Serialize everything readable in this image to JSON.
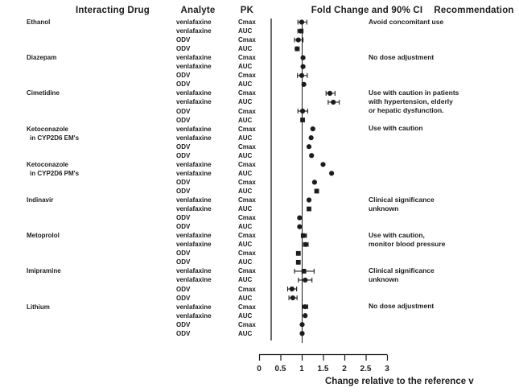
{
  "chart_data": {
    "type": "forest",
    "title": "Fold Change and 90% CI",
    "columns": [
      "Interacting Drug",
      "Analyte",
      "PK",
      "Fold Change and 90% CI",
      "Recommendation"
    ],
    "axis": {
      "xlabel": "Change relative to the reference v",
      "tick_labels": [
        "0",
        "0.5",
        "1",
        "1.5",
        "2",
        "2.5",
        "3"
      ],
      "tick_values": [
        0,
        0.5,
        1,
        1.5,
        2,
        2.5,
        3
      ],
      "xlim": [
        0,
        3
      ],
      "reference_line": 1
    },
    "groups": [
      {
        "drug": "Ethanol",
        "drug_line2": null,
        "recommendation": [
          "Avoid concomitant use"
        ],
        "rows": [
          {
            "analyte": "venlafaxine",
            "pk": "Cmax",
            "value": 1.0,
            "lo": 0.91,
            "hi": 1.12,
            "marker": "circle"
          },
          {
            "analyte": "venlafaxine",
            "pk": "AUC",
            "value": 0.97,
            "lo": 0.91,
            "hi": 1.03,
            "marker": "circle"
          },
          {
            "analyte": "ODV",
            "pk": "Cmax",
            "value": 0.92,
            "lo": 0.83,
            "hi": 1.03,
            "marker": "circle"
          },
          {
            "analyte": "ODV",
            "pk": "AUC",
            "value": 0.89,
            "lo": 0.85,
            "hi": 0.94,
            "marker": "circle"
          }
        ]
      },
      {
        "drug": "Diazepam",
        "drug_line2": null,
        "recommendation": [
          "No dose adjustment"
        ],
        "rows": [
          {
            "analyte": "venlafaxine",
            "pk": "Cmax",
            "value": 1.03,
            "lo": null,
            "hi": null,
            "marker": "circle"
          },
          {
            "analyte": "venlafaxine",
            "pk": "AUC",
            "value": 1.03,
            "lo": null,
            "hi": null,
            "marker": "circle"
          },
          {
            "analyte": "ODV",
            "pk": "Cmax",
            "value": 1.0,
            "lo": 0.9,
            "hi": 1.13,
            "marker": "circle"
          },
          {
            "analyte": "ODV",
            "pk": "AUC",
            "value": 1.05,
            "lo": null,
            "hi": null,
            "marker": "circle"
          }
        ]
      },
      {
        "drug": "Cimetidine",
        "drug_line2": null,
        "recommendation": [
          "Use with caution in patients",
          "with hypertension, elderly",
          "or hepatic dysfunction."
        ],
        "rows": [
          {
            "analyte": "venlafaxine",
            "pk": "Cmax",
            "value": 1.66,
            "lo": 1.57,
            "hi": 1.78,
            "marker": "circle"
          },
          {
            "analyte": "venlafaxine",
            "pk": "AUC",
            "value": 1.74,
            "lo": 1.62,
            "hi": 1.88,
            "marker": "circle"
          },
          {
            "analyte": "ODV",
            "pk": "Cmax",
            "value": 1.02,
            "lo": 0.91,
            "hi": 1.14,
            "marker": "circle"
          },
          {
            "analyte": "ODV",
            "pk": "AUC",
            "value": 1.02,
            "lo": null,
            "hi": null,
            "marker": "square"
          }
        ]
      },
      {
        "drug": "Ketoconazole",
        "drug_line2": "in CYP2D6 EM's",
        "recommendation": [
          "Use with caution"
        ],
        "rows": [
          {
            "analyte": "venlafaxine",
            "pk": "Cmax",
            "value": 1.26,
            "lo": null,
            "hi": null,
            "marker": "circle"
          },
          {
            "analyte": "venlafaxine",
            "pk": "AUC",
            "value": 1.22,
            "lo": null,
            "hi": null,
            "marker": "circle"
          },
          {
            "analyte": "ODV",
            "pk": "Cmax",
            "value": 1.17,
            "lo": null,
            "hi": null,
            "marker": "circle"
          },
          {
            "analyte": "ODV",
            "pk": "AUC",
            "value": 1.23,
            "lo": null,
            "hi": null,
            "marker": "circle"
          }
        ]
      },
      {
        "drug": "Ketoconazole",
        "drug_line2": "in CYP2D6 PM's",
        "recommendation": [],
        "rows": [
          {
            "analyte": "venlafaxine",
            "pk": "Cmax",
            "value": 1.5,
            "lo": null,
            "hi": null,
            "marker": "circle"
          },
          {
            "analyte": "venlafaxine",
            "pk": "AUC",
            "value": 1.7,
            "lo": null,
            "hi": null,
            "marker": "circle"
          },
          {
            "analyte": "ODV",
            "pk": "Cmax",
            "value": 1.3,
            "lo": null,
            "hi": null,
            "marker": "circle"
          },
          {
            "analyte": "ODV",
            "pk": "AUC",
            "value": 1.35,
            "lo": null,
            "hi": null,
            "marker": "square"
          }
        ]
      },
      {
        "drug": "Indinavir",
        "drug_line2": null,
        "recommendation": [
          "Clinical significance",
          "unknown"
        ],
        "rows": [
          {
            "analyte": "venlafaxine",
            "pk": "Cmax",
            "value": 1.17,
            "lo": null,
            "hi": null,
            "marker": "circle"
          },
          {
            "analyte": "venlafaxine",
            "pk": "AUC",
            "value": 1.17,
            "lo": null,
            "hi": null,
            "marker": "square"
          },
          {
            "analyte": "ODV",
            "pk": "Cmax",
            "value": 0.95,
            "lo": null,
            "hi": null,
            "marker": "circle"
          },
          {
            "analyte": "ODV",
            "pk": "AUC",
            "value": 0.95,
            "lo": null,
            "hi": null,
            "marker": "circle"
          }
        ]
      },
      {
        "drug": "Metoprolol",
        "drug_line2": null,
        "recommendation": [
          "Use with caution,",
          "monitor blood pressure"
        ],
        "rows": [
          {
            "analyte": "venlafaxine",
            "pk": "Cmax",
            "value": 1.05,
            "lo": 0.99,
            "hi": 1.11,
            "marker": "circle"
          },
          {
            "analyte": "venlafaxine",
            "pk": "AUC",
            "value": 1.09,
            "lo": 1.04,
            "hi": 1.15,
            "marker": "circle"
          },
          {
            "analyte": "ODV",
            "pk": "Cmax",
            "value": 0.92,
            "lo": null,
            "hi": null,
            "marker": "square"
          },
          {
            "analyte": "ODV",
            "pk": "AUC",
            "value": 0.92,
            "lo": null,
            "hi": null,
            "marker": "square"
          }
        ]
      },
      {
        "drug": "Imipramine",
        "drug_line2": null,
        "recommendation": [
          "Clinical significance",
          "unknown"
        ],
        "rows": [
          {
            "analyte": "venlafaxine",
            "pk": "Cmax",
            "value": 1.05,
            "lo": 0.83,
            "hi": 1.29,
            "marker": "square"
          },
          {
            "analyte": "venlafaxine",
            "pk": "AUC",
            "value": 1.08,
            "lo": 0.92,
            "hi": 1.24,
            "marker": "circle"
          },
          {
            "analyte": "ODV",
            "pk": "Cmax",
            "value": 0.77,
            "lo": 0.67,
            "hi": 0.88,
            "marker": "circle"
          },
          {
            "analyte": "ODV",
            "pk": "AUC",
            "value": 0.79,
            "lo": 0.7,
            "hi": 0.89,
            "marker": "circle"
          }
        ]
      },
      {
        "drug": "Lithium",
        "drug_line2": null,
        "recommendation": [
          "No dose adjustment"
        ],
        "rows": [
          {
            "analyte": "venlafaxine",
            "pk": "Cmax",
            "value": 1.08,
            "lo": 1.02,
            "hi": 1.14,
            "marker": "circle"
          },
          {
            "analyte": "venlafaxine",
            "pk": "AUC",
            "value": 1.08,
            "lo": null,
            "hi": null,
            "marker": "circle"
          },
          {
            "analyte": "ODV",
            "pk": "Cmax",
            "value": 1.01,
            "lo": null,
            "hi": null,
            "marker": "circle"
          },
          {
            "analyte": "ODV",
            "pk": "AUC",
            "value": 1.01,
            "lo": null,
            "hi": null,
            "marker": "circle"
          }
        ]
      }
    ],
    "colors": {
      "ink": "#1c1c1c",
      "background": "#ffffff"
    }
  }
}
